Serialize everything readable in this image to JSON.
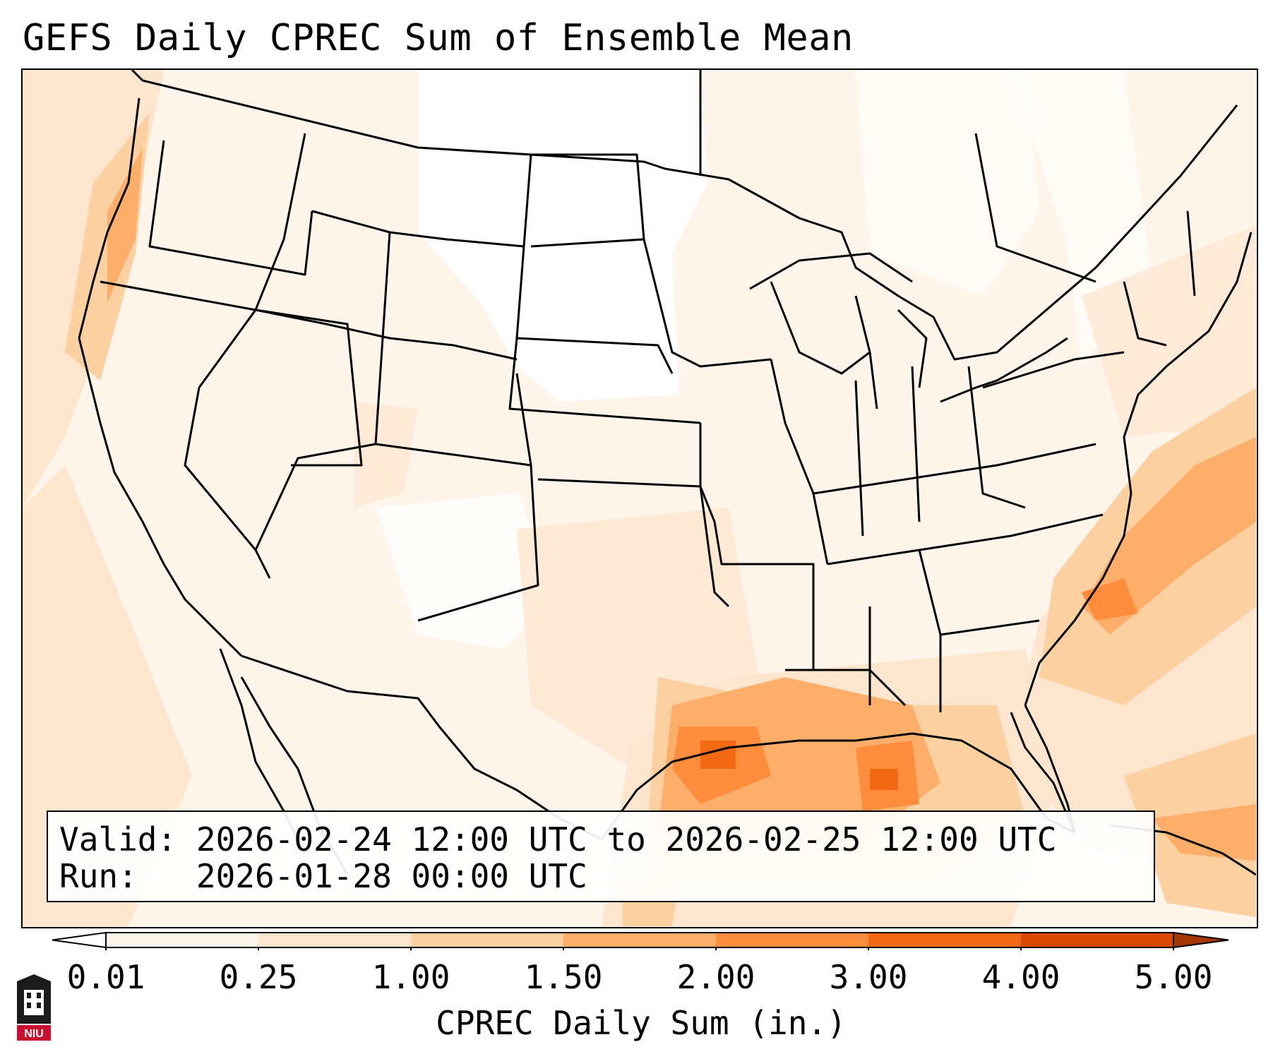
{
  "title": "GEFS Daily CPREC Sum of Ensemble Mean",
  "annotation": {
    "valid_label": "Valid:",
    "valid_value": "2026-02-24 12:00 UTC to 2026-02-25 12:00 UTC",
    "run_label": "Run:",
    "run_value": "2026-01-28 00:00 UTC"
  },
  "colorbar": {
    "title": "CPREC Daily Sum (in.)",
    "ticks": [
      "0.01",
      "0.25",
      "1.00",
      "1.50",
      "2.00",
      "3.00",
      "4.00",
      "5.00"
    ],
    "colors": [
      "#fff5eb",
      "#fee6ce",
      "#fdd0a2",
      "#fdae6b",
      "#fd8d3c",
      "#f16913",
      "#d94801",
      "#a63603"
    ]
  },
  "map": {
    "projection": "Lambert Conformal over contiguous United States",
    "region": "CONUS with southern Canada, northern Mexico, Gulf of Mexico and western Atlantic",
    "precip_features": [
      {
        "area": "Pacific Northwest coast",
        "level": "1.00-1.50"
      },
      {
        "area": "Texas Gulf coast / western Gulf of Mexico",
        "level": "2.00-3.00"
      },
      {
        "area": "Central Gulf of Mexico",
        "level": "2.00-3.00"
      },
      {
        "area": "Western Atlantic off Carolinas",
        "level": "1.50-2.00"
      },
      {
        "area": "Atlantic near Bahamas",
        "level": "1.00-1.50"
      }
    ]
  },
  "logo": {
    "text": "NIU",
    "color": "#c8102e"
  }
}
